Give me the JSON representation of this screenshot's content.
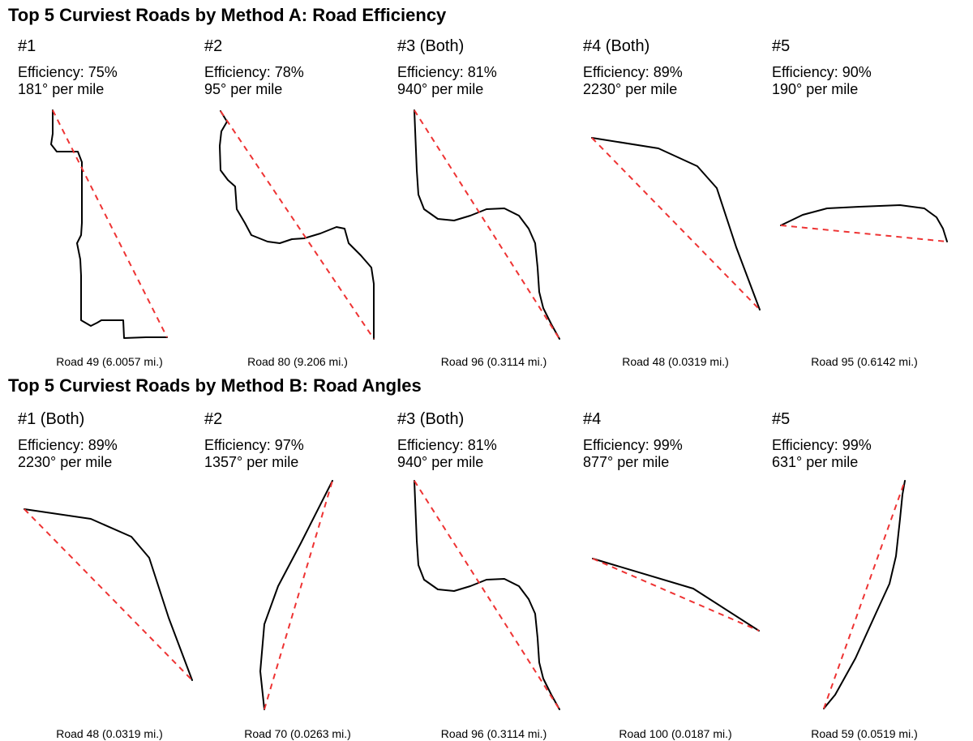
{
  "chart_data": [
    {
      "type": "line",
      "title": "Top 5 Curviest Roads by Method A: Road Efficiency",
      "panels": [
        {
          "rank": "#1",
          "efficiency": "Efficiency: 75%",
          "degrees": "181° per mile",
          "road": "Road 49 (6.0057 mi.)",
          "path": [
            [
              65,
              136
            ],
            [
              65,
              165
            ],
            [
              63,
              178
            ],
            [
              70,
              187
            ],
            [
              96,
              187
            ],
            [
              101,
              200
            ],
            [
              101,
              240
            ],
            [
              101,
              275
            ],
            [
              100,
              290
            ],
            [
              95,
              300
            ],
            [
              99,
              320
            ],
            [
              100,
              340
            ],
            [
              100,
              395
            ],
            [
              112,
              402
            ],
            [
              120,
              398
            ],
            [
              125,
              395
            ],
            [
              152,
              395
            ],
            [
              153,
              417
            ],
            [
              180,
              416
            ],
            [
              206,
              416
            ]
          ]
        },
        {
          "rank": "#2",
          "efficiency": "Efficiency: 78%",
          "degrees": "95° per mile",
          "road": "Road 80 (9.206 mi.)",
          "path": [
            [
              272,
              137
            ],
            [
              280,
              150
            ],
            [
              273,
              162
            ],
            [
              271,
              180
            ],
            [
              272,
              210
            ],
            [
              281,
              222
            ],
            [
              290,
              230
            ],
            [
              292,
              258
            ],
            [
              302,
              275
            ],
            [
              310,
              290
            ],
            [
              330,
              298
            ],
            [
              345,
              300
            ],
            [
              360,
              295
            ],
            [
              375,
              294
            ],
            [
              395,
              288
            ],
            [
              415,
              280
            ],
            [
              425,
              282
            ],
            [
              430,
              300
            ],
            [
              445,
              315
            ],
            [
              458,
              330
            ],
            [
              461,
              350
            ],
            [
              461,
              418
            ]
          ]
        },
        {
          "rank": "#3 (Both)",
          "efficiency": "Efficiency: 81%",
          "degrees": "940° per mile",
          "road": "Road 96 (0.3114 mi.)",
          "path": [
            [
              511,
              136
            ],
            [
              514,
              210
            ],
            [
              516,
              240
            ],
            [
              523,
              258
            ],
            [
              540,
              270
            ],
            [
              560,
              272
            ],
            [
              580,
              266
            ],
            [
              600,
              258
            ],
            [
              622,
              257
            ],
            [
              640,
              266
            ],
            [
              652,
              282
            ],
            [
              660,
              300
            ],
            [
              663,
              330
            ],
            [
              665,
              360
            ],
            [
              670,
              380
            ],
            [
              680,
              400
            ],
            [
              690,
              418
            ]
          ]
        },
        {
          "rank": "#4 (Both)",
          "efficiency": "Efficiency: 89%",
          "degrees": "2230° per mile",
          "road": "Road 48 (0.0319 mi.)",
          "path": [
            [
              730,
              170
            ],
            [
              812,
              183
            ],
            [
              860,
              205
            ],
            [
              884,
              232
            ],
            [
              908,
              305
            ],
            [
              937,
              382
            ]
          ]
        },
        {
          "rank": "#5",
          "efficiency": "Efficiency: 90%",
          "degrees": "190° per mile",
          "road": "Road 95 (0.6142 mi.)",
          "path": [
            [
              963,
              278
            ],
            [
              990,
              265
            ],
            [
              1020,
              257
            ],
            [
              1060,
              255
            ],
            [
              1110,
              253
            ],
            [
              1140,
              257
            ],
            [
              1155,
              268
            ],
            [
              1163,
              282
            ],
            [
              1168,
              298
            ]
          ]
        }
      ]
    },
    {
      "type": "line",
      "title": "Top 5 Curviest Roads by Method B: Road Angles",
      "panels": [
        {
          "rank": "#1 (Both)",
          "efficiency": "Efficiency: 89%",
          "degrees": "2230° per mile",
          "road": "Road 48 (0.0319 mi.)",
          "path": [
            [
              30,
              628
            ],
            [
              112,
              640
            ],
            [
              162,
              662
            ],
            [
              184,
              688
            ],
            [
              208,
              762
            ],
            [
              237,
              839
            ]
          ]
        },
        {
          "rank": "#2",
          "efficiency": "Efficiency: 97%",
          "degrees": "1357° per mile",
          "road": "Road 70 (0.0263 mi.)",
          "path": [
            [
              326,
              875
            ],
            [
              321,
              828
            ],
            [
              326,
              770
            ],
            [
              343,
              723
            ],
            [
              371,
              670
            ],
            [
              410,
              593
            ]
          ]
        },
        {
          "rank": "#3 (Both)",
          "efficiency": "Efficiency: 81%",
          "degrees": "940° per mile",
          "road": "Road 96 (0.3114 mi.)",
          "path": [
            [
              511,
              593
            ],
            [
              514,
              667
            ],
            [
              516,
              697
            ],
            [
              523,
              715
            ],
            [
              540,
              727
            ],
            [
              560,
              729
            ],
            [
              580,
              723
            ],
            [
              600,
              715
            ],
            [
              622,
              714
            ],
            [
              640,
              723
            ],
            [
              652,
              739
            ],
            [
              660,
              757
            ],
            [
              663,
              787
            ],
            [
              665,
              817
            ],
            [
              670,
              837
            ],
            [
              680,
              857
            ],
            [
              690,
              875
            ]
          ]
        },
        {
          "rank": "#4",
          "efficiency": "Efficiency: 99%",
          "degrees": "877° per mile",
          "road": "Road 100 (0.0187 mi.)",
          "path": [
            [
              731,
              689
            ],
            [
              855,
              726
            ],
            [
              936,
              778
            ]
          ]
        },
        {
          "rank": "#5",
          "efficiency": "Efficiency: 99%",
          "degrees": "631° per mile",
          "road": "Road 59 (0.0519 mi.)",
          "path": [
            [
              1016,
              874
            ],
            [
              1030,
              857
            ],
            [
              1055,
              812
            ],
            [
              1080,
              757
            ],
            [
              1097,
              720
            ],
            [
              1105,
              686
            ],
            [
              1110,
              640
            ],
            [
              1113,
              610
            ],
            [
              1116,
              593
            ]
          ]
        }
      ]
    }
  ],
  "colors": {
    "road": "#000000",
    "straight_line": "#ee3333"
  }
}
